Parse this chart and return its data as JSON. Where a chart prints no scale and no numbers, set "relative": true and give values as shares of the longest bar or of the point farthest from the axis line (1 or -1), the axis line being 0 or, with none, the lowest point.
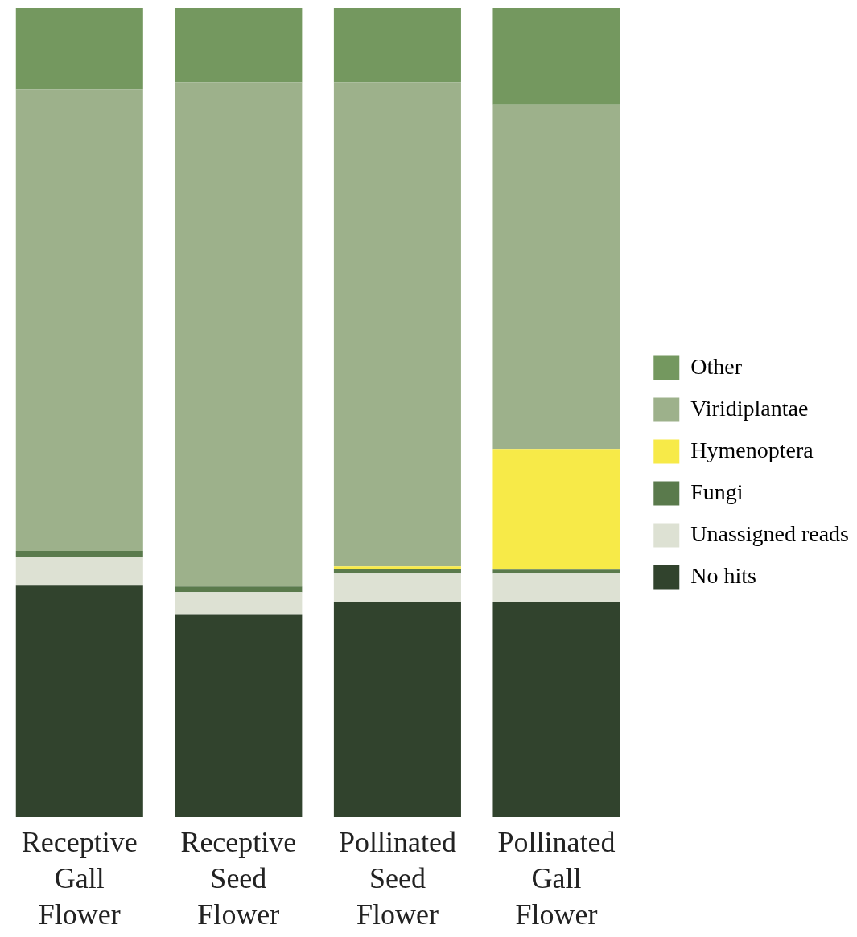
{
  "chart_data": {
    "type": "bar",
    "stacked": true,
    "relative": true,
    "legend": "right",
    "categories": [
      "Receptive Gall Flower",
      "Receptive Seed Flower",
      "Pollinated Seed Flower",
      "Pollinated Gall Flower"
    ],
    "series": [
      {
        "name": "No hits",
        "color": "#31432d",
        "values": [
          0.287,
          0.25,
          0.266,
          0.266
        ]
      },
      {
        "name": "Unassigned reads",
        "color": "#dde1d3",
        "values": [
          0.035,
          0.028,
          0.035,
          0.035
        ]
      },
      {
        "name": "Fungi",
        "color": "#5a7a4c",
        "values": [
          0.007,
          0.007,
          0.006,
          0.005
        ]
      },
      {
        "name": "Hymenoptera",
        "color": "#f7ea48",
        "values": [
          0,
          0,
          0.003,
          0.149
        ]
      },
      {
        "name": "Viridiplantae",
        "color": "#9db18b",
        "values": [
          0.57,
          0.623,
          0.598,
          0.426
        ]
      },
      {
        "name": "Other",
        "color": "#74985f",
        "values": [
          0.101,
          0.092,
          0.092,
          0.119
        ]
      }
    ]
  }
}
